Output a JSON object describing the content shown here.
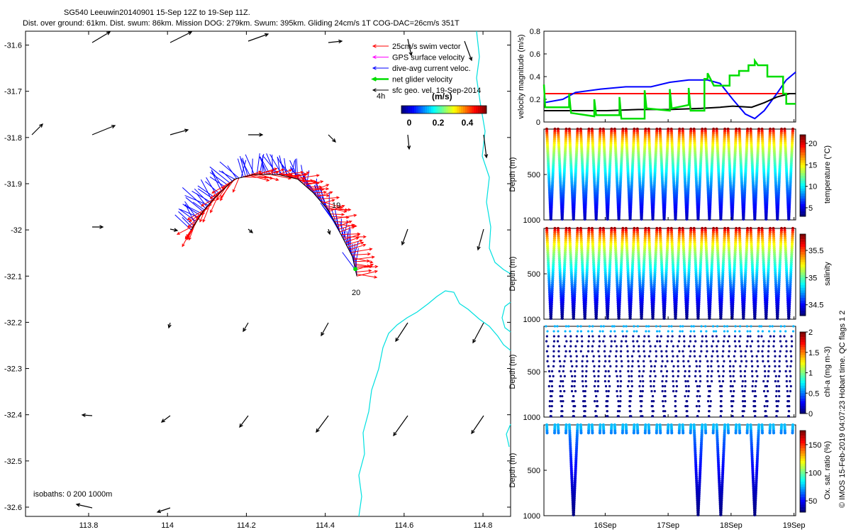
{
  "header": {
    "title_line1": "SG540 Leeuwin20140901 15-Sep 12Z to 19-Sep 11Z.",
    "title_line2": "Dist. over ground: 61km. Dist. swum: 86km. Mission DOG: 279km. Swum: 395km. Gliding 24cm/s 1T COG-DAC=26cm/s 351T"
  },
  "side_note": "© IMOS 15-Feb-2019 04:07:23 Hobart time. QC flags 1  2",
  "colors": {
    "swim": "#ff0000",
    "gps": "#ff00ff",
    "dac": "#0000ff",
    "net": "#00dd00",
    "geo": "#000000",
    "isobath": "#00e0e0"
  },
  "map": {
    "legend": [
      {
        "label": "25cm/s swim vector",
        "color": "#ff0000"
      },
      {
        "label": "GPS surface velocity",
        "color": "#ff00ff"
      },
      {
        "label": "dive-avg current veloc.",
        "color": "#0000ff"
      },
      {
        "label": "net glider velocity",
        "color": "#00dd00"
      },
      {
        "label": "sfc geo. vel. 19-Sep-2014",
        "color": "#000000"
      }
    ],
    "legend_4h": "4h",
    "colorbar_title": "(m/s)",
    "colorbar_ticks": [
      "0",
      "0.2",
      "0.4"
    ],
    "isobaths_note": "isobaths: 0   200  1000m",
    "track_labels": [
      "19",
      "20"
    ]
  },
  "chart_data": [
    {
      "type": "scatter",
      "name": "map",
      "x_ticks": [
        "113.8",
        "114",
        "114.2",
        "114.4",
        "114.6",
        "114.8"
      ],
      "y_ticks": [
        "-31.6",
        "-31.7",
        "-31.8",
        "-31.9",
        "-32",
        "-32.1",
        "-32.2",
        "-32.3",
        "-32.4",
        "-32.5",
        "-32.6"
      ],
      "xlim": [
        113.64,
        114.87
      ],
      "ylim": [
        -32.62,
        -31.57
      ],
      "track": [
        [
          114.06,
          -32.0
        ],
        [
          114.09,
          -31.96
        ],
        [
          114.12,
          -31.93
        ],
        [
          114.17,
          -31.89
        ],
        [
          114.22,
          -31.88
        ],
        [
          114.28,
          -31.88
        ],
        [
          114.33,
          -31.89
        ],
        [
          114.37,
          -31.92
        ],
        [
          114.41,
          -31.96
        ],
        [
          114.44,
          -32.01
        ],
        [
          114.47,
          -32.06
        ],
        [
          114.48,
          -32.1
        ]
      ]
    },
    {
      "type": "line",
      "name": "velocity",
      "ylabel": "velocity magnitude (m/s)",
      "y_ticks": [
        "0",
        "0.2",
        "0.4",
        "0.6",
        "0.8"
      ],
      "ylim": [
        0,
        0.8
      ],
      "xlim": [
        15.5,
        19.5
      ],
      "series": [
        {
          "color": "#ff0000",
          "values": [
            [
              15.5,
              0.25
            ],
            [
              19.5,
              0.25
            ]
          ]
        },
        {
          "color": "#0000ff",
          "values": [
            [
              15.5,
              0.17
            ],
            [
              15.8,
              0.2
            ],
            [
              16.0,
              0.26
            ],
            [
              16.4,
              0.29
            ],
            [
              16.8,
              0.31
            ],
            [
              17.2,
              0.31
            ],
            [
              17.5,
              0.35
            ],
            [
              17.8,
              0.37
            ],
            [
              18.1,
              0.37
            ],
            [
              18.3,
              0.34
            ],
            [
              18.5,
              0.2
            ],
            [
              18.7,
              0.07
            ],
            [
              18.85,
              0.03
            ],
            [
              19.0,
              0.1
            ],
            [
              19.2,
              0.25
            ],
            [
              19.35,
              0.37
            ],
            [
              19.5,
              0.44
            ]
          ]
        },
        {
          "color": "#000000",
          "values": [
            [
              15.5,
              0.1
            ],
            [
              16.0,
              0.1
            ],
            [
              16.5,
              0.1
            ],
            [
              17.0,
              0.11
            ],
            [
              17.5,
              0.11
            ],
            [
              18.0,
              0.12
            ],
            [
              18.3,
              0.13
            ],
            [
              18.5,
              0.14
            ],
            [
              18.8,
              0.13
            ],
            [
              19.0,
              0.17
            ],
            [
              19.2,
              0.22
            ],
            [
              19.4,
              0.25
            ],
            [
              19.5,
              0.25
            ]
          ]
        },
        {
          "color": "#00dd00",
          "values": [
            [
              15.5,
              0.33
            ],
            [
              15.52,
              0.13
            ],
            [
              15.9,
              0.13
            ],
            [
              15.9,
              0.25
            ],
            [
              15.93,
              0.08
            ],
            [
              16.3,
              0.05
            ],
            [
              16.3,
              0.2
            ],
            [
              16.33,
              0.06
            ],
            [
              16.7,
              0.06
            ],
            [
              16.7,
              0.22
            ],
            [
              16.73,
              0.03
            ],
            [
              17.1,
              0.03
            ],
            [
              17.1,
              0.28
            ],
            [
              17.13,
              0.12
            ],
            [
              17.5,
              0.1
            ],
            [
              17.5,
              0.29
            ],
            [
              17.53,
              0.12
            ],
            [
              17.8,
              0.15
            ],
            [
              17.8,
              0.3
            ],
            [
              17.83,
              0.1
            ],
            [
              18.05,
              0.1
            ],
            [
              18.05,
              0.38
            ],
            [
              18.1,
              0.38
            ],
            [
              18.1,
              0.43
            ],
            [
              18.2,
              0.32
            ],
            [
              18.45,
              0.32
            ],
            [
              18.45,
              0.41
            ],
            [
              18.6,
              0.41
            ],
            [
              18.6,
              0.45
            ],
            [
              18.75,
              0.45
            ],
            [
              18.75,
              0.5
            ],
            [
              18.85,
              0.5
            ],
            [
              18.85,
              0.54
            ],
            [
              18.9,
              0.5
            ],
            [
              19.05,
              0.5
            ],
            [
              19.05,
              0.4
            ],
            [
              19.3,
              0.4
            ],
            [
              19.3,
              0.25
            ],
            [
              19.35,
              0.25
            ],
            [
              19.35,
              0.16
            ],
            [
              19.5,
              0.16
            ]
          ]
        }
      ]
    },
    {
      "type": "scatter",
      "name": "temperature",
      "ylabel": "Depth (m)",
      "colorbar_label": "temperature (°C)",
      "colorbar_ticks": [
        "5",
        "10",
        "15",
        "20"
      ],
      "clim": [
        3,
        22
      ],
      "y_ticks": [
        "500",
        "1000"
      ],
      "ylim": [
        0,
        1000
      ],
      "dives": 22
    },
    {
      "type": "scatter",
      "name": "salinity",
      "ylabel": "Depth (m)",
      "colorbar_label": "salinity",
      "colorbar_ticks": [
        "34.5",
        "35",
        "35.5"
      ],
      "clim": [
        34.3,
        35.8
      ],
      "y_ticks": [
        "500",
        "1000"
      ],
      "ylim": [
        0,
        1000
      ],
      "dives": 22
    },
    {
      "type": "scatter",
      "name": "chla",
      "ylabel": "Depth (m)",
      "colorbar_label": "chl-a (mg m-3)",
      "colorbar_ticks": [
        "0",
        "0.5",
        "1",
        "1.5",
        "2"
      ],
      "clim": [
        0,
        2
      ],
      "y_ticks": [
        "500",
        "1000"
      ],
      "ylim": [
        0,
        1000
      ],
      "dives": 22
    },
    {
      "type": "scatter",
      "name": "oxygen",
      "ylabel": "Depth (m)",
      "colorbar_label": "Ox. sat. ratio (%)",
      "colorbar_ticks": [
        "50",
        "100",
        "150"
      ],
      "clim": [
        30,
        175
      ],
      "y_ticks": [
        "500",
        "1000"
      ],
      "ylim": [
        0,
        1000
      ],
      "x_ticks": [
        "16Sep",
        "17Sep",
        "18Sep",
        "19Sep"
      ],
      "deep_dives": [
        2,
        13,
        15,
        18
      ]
    }
  ]
}
